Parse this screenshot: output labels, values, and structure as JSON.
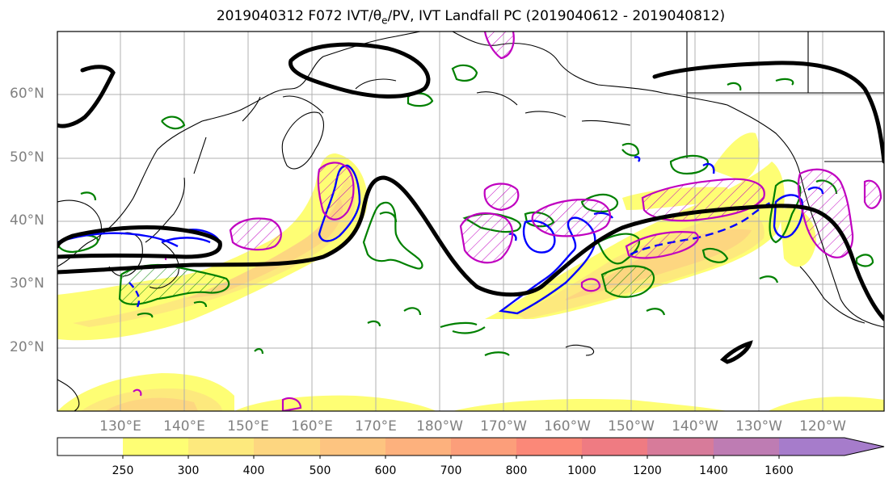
{
  "title": {
    "prefix": "2019040312 F072 IVT/",
    "theta": "θ",
    "sub": "e",
    "suffix": "/PV, IVT Landfall PC (2019040612 - 2019040812)"
  },
  "lat_labels": [
    "60°N",
    "50°N",
    "40°N",
    "30°N",
    "20°N"
  ],
  "lon_labels": [
    "130°E",
    "140°E",
    "150°E",
    "160°E",
    "170°E",
    "180°W",
    "170°W",
    "160°W",
    "150°W",
    "140°W",
    "130°W",
    "120°W"
  ],
  "colorbar": {
    "levels": [
      "250",
      "300",
      "400",
      "500",
      "600",
      "700",
      "800",
      "1000",
      "1200",
      "1400",
      "1600"
    ],
    "colors": [
      "#ffffff",
      "#fefe74",
      "#fde97d",
      "#fdd680",
      "#fdc480",
      "#fdb17d",
      "#fc9e7a",
      "#fb8878",
      "#ef7b82",
      "#d77b9a",
      "#be7cb3",
      "#a67ccb"
    ]
  },
  "colors": {
    "ivt_contour_black": "#000000",
    "theta_green": "#008000",
    "pv_blue": "#0000ff",
    "pv_magenta": "#c000c0",
    "coastline": "#000000"
  }
}
